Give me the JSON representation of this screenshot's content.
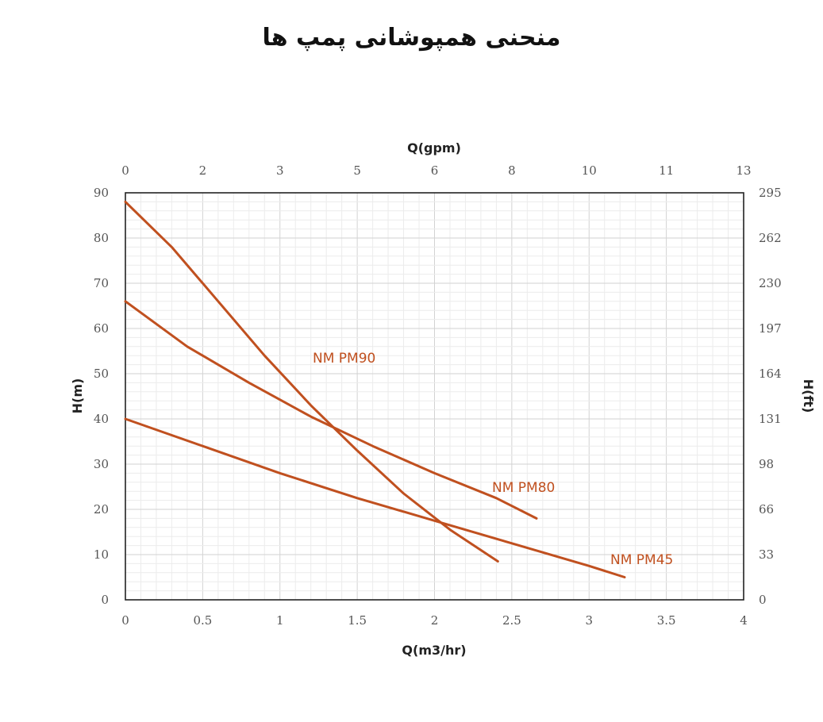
{
  "title": "منحنی همپوشانی پمپ ها",
  "chart_data": {
    "type": "line",
    "xlabel_bottom": "Q(m3/hr)",
    "xlabel_top": "Q(gpm)",
    "ylabel_left": "H(m)",
    "ylabel_right": "H(ft)",
    "xlim": [
      0,
      4
    ],
    "ylim": [
      0,
      90
    ],
    "grid": true,
    "x_ticks": [
      "0",
      "0.5",
      "1",
      "1.5",
      "2",
      "2.5",
      "3",
      "3.5",
      "4"
    ],
    "y_ticks": [
      "0",
      "10",
      "20",
      "30",
      "40",
      "50",
      "60",
      "70",
      "80",
      "90"
    ],
    "top_ticks": [
      "0",
      "2",
      "3",
      "5",
      "6",
      "8",
      "10",
      "11",
      "13"
    ],
    "right_ticks": [
      "0",
      "33",
      "66",
      "98",
      "131",
      "164",
      "197",
      "230",
      "262",
      "295"
    ],
    "line_color": "#c0501f",
    "series": [
      {
        "name": "NM PM90",
        "points": [
          [
            0,
            88
          ],
          [
            0.3,
            78
          ],
          [
            0.6,
            66
          ],
          [
            0.9,
            54
          ],
          [
            1.2,
            43
          ],
          [
            1.5,
            33
          ],
          [
            1.8,
            23.5
          ],
          [
            2.1,
            15.5
          ],
          [
            2.41,
            8.5
          ]
        ]
      },
      {
        "name": "NM PM80",
        "points": [
          [
            0,
            66
          ],
          [
            0.4,
            56
          ],
          [
            0.8,
            48
          ],
          [
            1.2,
            40.5
          ],
          [
            1.6,
            34
          ],
          [
            2.0,
            28
          ],
          [
            2.4,
            22.5
          ],
          [
            2.66,
            18
          ]
        ]
      },
      {
        "name": "NM PM45",
        "points": [
          [
            0,
            40
          ],
          [
            0.5,
            34
          ],
          [
            1.0,
            28
          ],
          [
            1.5,
            22.5
          ],
          [
            2.0,
            17.5
          ],
          [
            2.5,
            12.5
          ],
          [
            3.0,
            7.5
          ],
          [
            3.23,
            5
          ]
        ]
      }
    ]
  }
}
